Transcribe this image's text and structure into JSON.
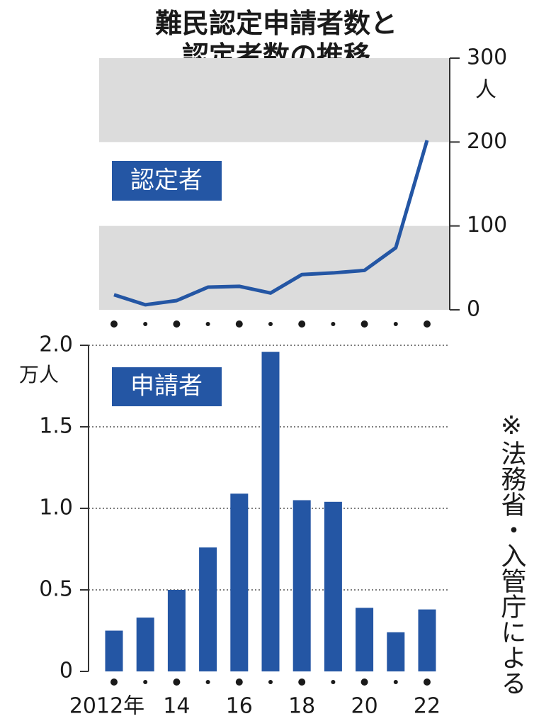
{
  "chart_data": [
    {
      "type": "line",
      "title": "難民認定申請者数と認定者数の推移",
      "series_label": "認定者",
      "ylabel": "人",
      "values": [
        18,
        6,
        11,
        27,
        28,
        20,
        42,
        44,
        47,
        74,
        202
      ],
      "color": "#2456a4",
      "ylim": [
        0,
        300
      ],
      "yticks": [
        0,
        100,
        200,
        300
      ],
      "bands": true
    },
    {
      "type": "bar",
      "series_label": "申請者",
      "ylabel": "万人",
      "categories": [
        "2012年",
        null,
        "14",
        null,
        "16",
        null,
        "18",
        null,
        "20",
        null,
        "22"
      ],
      "values": [
        0.25,
        0.33,
        0.5,
        0.76,
        1.09,
        1.96,
        1.05,
        1.04,
        0.39,
        0.24,
        0.38
      ],
      "color": "#2456a4",
      "ylim": [
        0,
        2.0
      ],
      "yticks": [
        0,
        0.5,
        {
          "value": 1.0,
          "label": "1.0"
        },
        1.5,
        {
          "value": 2.0,
          "label": "2.0"
        }
      ],
      "grid": true
    }
  ],
  "source": "※法務省・入管庁による"
}
